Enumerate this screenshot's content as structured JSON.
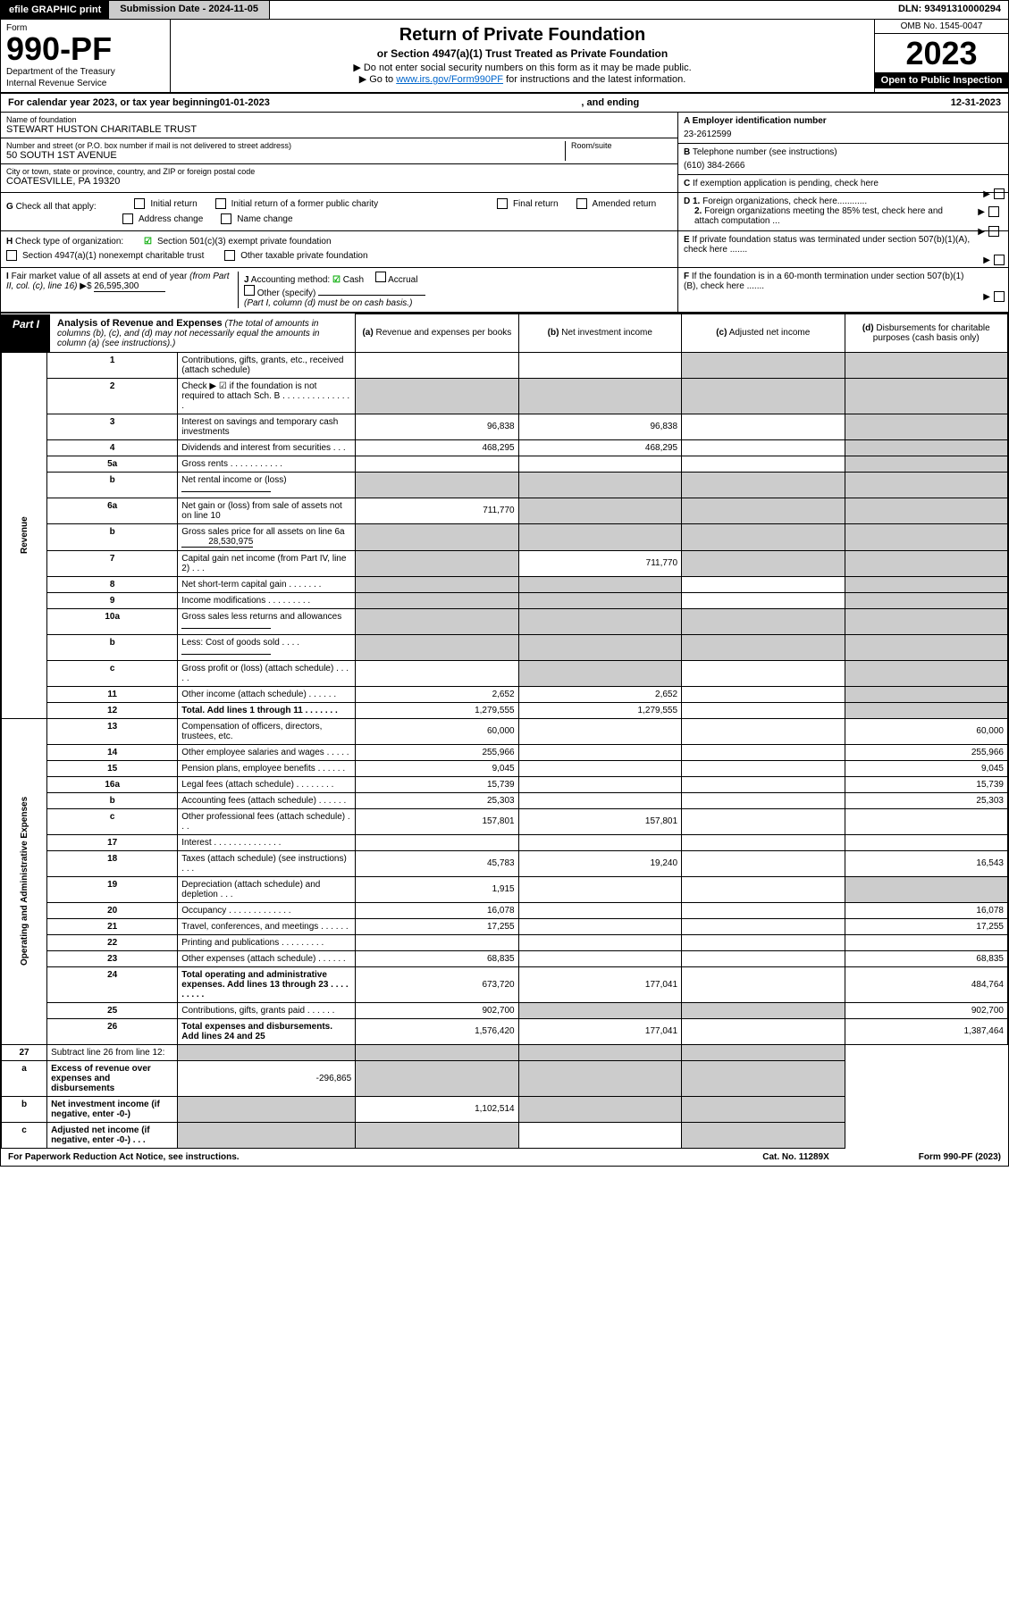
{
  "topbar": {
    "efile": "efile GRAPHIC print",
    "submission": "Submission Date - 2024-11-05",
    "dln": "DLN: 93491310000294"
  },
  "header": {
    "form_label": "Form",
    "form_number": "990-PF",
    "dept1": "Department of the Treasury",
    "dept2": "Internal Revenue Service",
    "title": "Return of Private Foundation",
    "subtitle": "or Section 4947(a)(1) Trust Treated as Private Foundation",
    "instr1": "▶ Do not enter social security numbers on this form as it may be made public.",
    "instr2_pre": "▶ Go to ",
    "instr2_link": "www.irs.gov/Form990PF",
    "instr2_post": " for instructions and the latest information.",
    "omb": "OMB No. 1545-0047",
    "year": "2023",
    "open": "Open to Public Inspection"
  },
  "calyear": {
    "pre": "For calendar year 2023, or tax year beginning ",
    "begin": "01-01-2023",
    "mid": ", and ending ",
    "end": "12-31-2023"
  },
  "entity": {
    "name_label": "Name of foundation",
    "name": "STEWART HUSTON CHARITABLE TRUST",
    "addr_label": "Number and street (or P.O. box number if mail is not delivered to street address)",
    "addr": "50 SOUTH 1ST AVENUE",
    "room_label": "Room/suite",
    "city_label": "City or town, state or province, country, and ZIP or foreign postal code",
    "city": "COATESVILLE, PA  19320",
    "a_label": "A Employer identification number",
    "a_val": "23-2612599",
    "b_label": "B",
    "b_text": "Telephone number (see instructions)",
    "b_val": "(610) 384-2666",
    "c_text": "If exemption application is pending, check here",
    "d1": "Foreign organizations, check here............",
    "d2": "Foreign organizations meeting the 85% test, check here and attach computation ...",
    "e_text": "If private foundation status was terminated under section 507(b)(1)(A), check here .......",
    "f_text": "If the foundation is in a 60-month termination under section 507(b)(1)(B), check here .......",
    "g_label": "G",
    "g_text": "Check all that apply:",
    "g_opts": [
      "Initial return",
      "Initial return of a former public charity",
      "Final return",
      "Amended return",
      "Address change",
      "Name change"
    ],
    "h_label": "H",
    "h_text": "Check type of organization:",
    "h_opt1": "Section 501(c)(3) exempt private foundation",
    "h_opt2": "Section 4947(a)(1) nonexempt charitable trust",
    "h_opt3": "Other taxable private foundation",
    "i_label": "I",
    "i_text1": "Fair market value of all assets at end of year ",
    "i_text2": "(from Part II, col. (c), line 16)",
    "i_val": "26,595,300",
    "j_label": "J",
    "j_text": "Accounting method:",
    "j_cash": "Cash",
    "j_accrual": "Accrual",
    "j_other": "Other (specify)",
    "j_note": "(Part I, column (d) must be on cash basis.)"
  },
  "part1": {
    "label": "Part I",
    "title": "Analysis of Revenue and Expenses",
    "note": "(The total of amounts in columns (b), (c), and (d) may not necessarily equal the amounts in column (a) (see instructions).)",
    "cols": {
      "a": "Revenue and expenses per books",
      "b": "Net investment income",
      "c": "Adjusted net income",
      "d": "Disbursements for charitable purposes (cash basis only)"
    }
  },
  "sections": {
    "revenue": "Revenue",
    "expenses": "Operating and Administrative Expenses"
  },
  "lines": [
    {
      "n": "1",
      "d": "Contributions, gifts, grants, etc., received (attach schedule)",
      "a": "",
      "b": "",
      "grey_cd": true
    },
    {
      "n": "2",
      "d": "Check ▶ ☑ if the foundation is not required to attach Sch. B   .   .   .   .   .   .   .   .   .   .   .   .   .   .   .",
      "grey_all": true
    },
    {
      "n": "3",
      "d": "Interest on savings and temporary cash investments",
      "a": "96,838",
      "b": "96,838",
      "grey_d": true
    },
    {
      "n": "4",
      "d": "Dividends and interest from securities   .   .   .",
      "a": "468,295",
      "b": "468,295",
      "grey_d": true
    },
    {
      "n": "5a",
      "d": "Gross rents   .   .   .   .   .   .   .   .   .   .   .",
      "grey_d": true
    },
    {
      "n": "b",
      "d": "Net rental income or (loss)",
      "inline": true,
      "grey_all": true
    },
    {
      "n": "6a",
      "d": "Net gain or (loss) from sale of assets not on line 10",
      "a": "711,770",
      "grey_bcd": true
    },
    {
      "n": "b",
      "d": "Gross sales price for all assets on line 6a",
      "inline_val": "28,530,975",
      "grey_all": true
    },
    {
      "n": "7",
      "d": "Capital gain net income (from Part IV, line 2)   .   .   .",
      "grey_a": true,
      "b": "711,770",
      "grey_cd": true
    },
    {
      "n": "8",
      "d": "Net short-term capital gain   .   .   .   .   .   .   .",
      "grey_ab": true,
      "grey_d": true
    },
    {
      "n": "9",
      "d": "Income modifications   .   .   .   .   .   .   .   .   .",
      "grey_ab": true,
      "grey_d": true
    },
    {
      "n": "10a",
      "d": "Gross sales less returns and allowances",
      "inline": true,
      "grey_all": true
    },
    {
      "n": "b",
      "d": "Less: Cost of goods sold   .   .   .   .",
      "inline": true,
      "grey_all": true
    },
    {
      "n": "c",
      "d": "Gross profit or (loss) (attach schedule)   .   .   .   .   .",
      "grey_b": true,
      "grey_d": true
    },
    {
      "n": "11",
      "d": "Other income (attach schedule)   .   .   .   .   .   .",
      "a": "2,652",
      "b": "2,652",
      "grey_d": true
    },
    {
      "n": "12",
      "d": "Total. Add lines 1 through 11   .   .   .   .   .   .   .",
      "bold": true,
      "a": "1,279,555",
      "b": "1,279,555",
      "grey_d": true
    }
  ],
  "exp_lines": [
    {
      "n": "13",
      "d": "Compensation of officers, directors, trustees, etc.",
      "a": "60,000",
      "dd": "60,000"
    },
    {
      "n": "14",
      "d": "Other employee salaries and wages   .   .   .   .   .",
      "a": "255,966",
      "dd": "255,966"
    },
    {
      "n": "15",
      "d": "Pension plans, employee benefits   .   .   .   .   .   .",
      "a": "9,045",
      "dd": "9,045"
    },
    {
      "n": "16a",
      "d": "Legal fees (attach schedule)   .   .   .   .   .   .   .   .",
      "a": "15,739",
      "dd": "15,739"
    },
    {
      "n": "b",
      "d": "Accounting fees (attach schedule)   .   .   .   .   .   .",
      "a": "25,303",
      "dd": "25,303"
    },
    {
      "n": "c",
      "d": "Other professional fees (attach schedule)   .   .   .",
      "a": "157,801",
      "b": "157,801"
    },
    {
      "n": "17",
      "d": "Interest   .   .   .   .   .   .   .   .   .   .   .   .   .   ."
    },
    {
      "n": "18",
      "d": "Taxes (attach schedule) (see instructions)   .   .   .",
      "a": "45,783",
      "b": "19,240",
      "dd": "16,543"
    },
    {
      "n": "19",
      "d": "Depreciation (attach schedule) and depletion   .   .   .",
      "a": "1,915",
      "grey_d": true
    },
    {
      "n": "20",
      "d": "Occupancy   .   .   .   .   .   .   .   .   .   .   .   .   .",
      "a": "16,078",
      "dd": "16,078"
    },
    {
      "n": "21",
      "d": "Travel, conferences, and meetings   .   .   .   .   .   .",
      "a": "17,255",
      "dd": "17,255"
    },
    {
      "n": "22",
      "d": "Printing and publications   .   .   .   .   .   .   .   .   ."
    },
    {
      "n": "23",
      "d": "Other expenses (attach schedule)   .   .   .   .   .   .",
      "a": "68,835",
      "dd": "68,835"
    },
    {
      "n": "24",
      "d": "Total operating and administrative expenses. Add lines 13 through 23   .   .   .   .   .   .   .   .   .",
      "bold": true,
      "a": "673,720",
      "b": "177,041",
      "dd": "484,764"
    },
    {
      "n": "25",
      "d": "Contributions, gifts, grants paid   .   .   .   .   .   .",
      "a": "902,700",
      "grey_bc": true,
      "dd": "902,700"
    },
    {
      "n": "26",
      "d": "Total expenses and disbursements. Add lines 24 and 25",
      "bold": true,
      "a": "1,576,420",
      "b": "177,041",
      "dd": "1,387,464"
    }
  ],
  "final_lines": [
    {
      "n": "27",
      "d": "Subtract line 26 from line 12:",
      "grey_all": true
    },
    {
      "n": "a",
      "d": "Excess of revenue over expenses and disbursements",
      "bold": true,
      "a": "-296,865",
      "grey_bcd": true
    },
    {
      "n": "b",
      "d": "Net investment income (if negative, enter -0-)",
      "bold": true,
      "grey_a": true,
      "b": "1,102,514",
      "grey_cd": true
    },
    {
      "n": "c",
      "d": "Adjusted net income (if negative, enter -0-)   .   .   .",
      "bold": true,
      "grey_ab": true,
      "grey_d": true
    }
  ],
  "footer": {
    "left": "For Paperwork Reduction Act Notice, see instructions.",
    "mid": "Cat. No. 11289X",
    "right": "Form 990-PF (2023)"
  }
}
